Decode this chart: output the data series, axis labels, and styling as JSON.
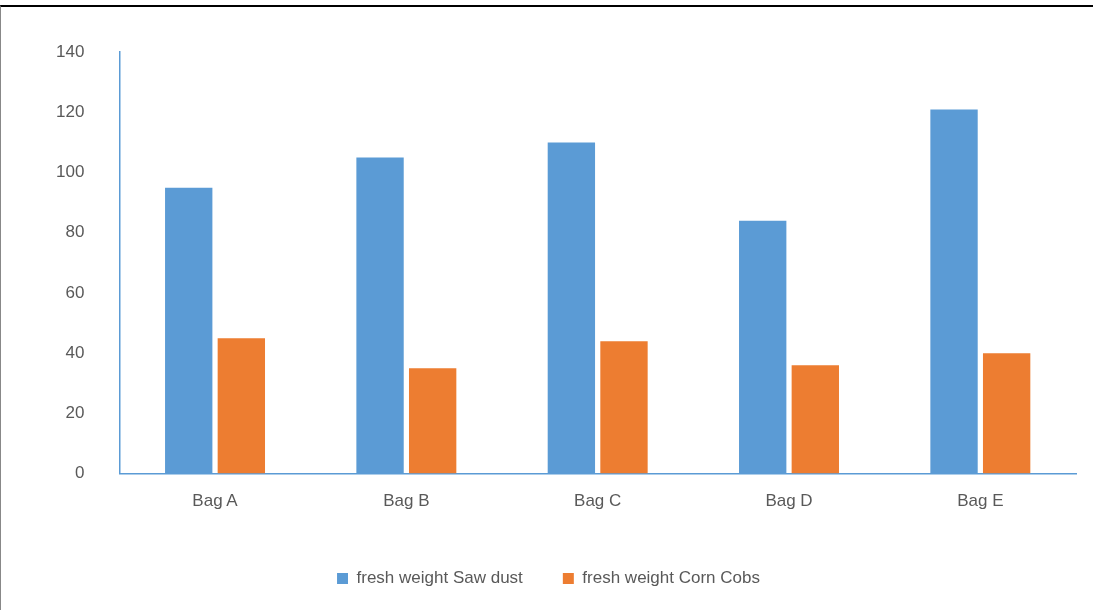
{
  "chart_data": {
    "type": "bar",
    "categories": [
      "Bag A",
      "Bag B",
      "Bag C",
      "Bag D",
      "Bag E"
    ],
    "series": [
      {
        "name": "fresh weight Saw dust",
        "color": "#5b9bd5",
        "values": [
          95,
          105,
          110,
          84,
          121
        ]
      },
      {
        "name": "fresh weight Corn Cobs",
        "color": "#ed7d31",
        "values": [
          45,
          35,
          44,
          36,
          40
        ]
      }
    ],
    "ylim": [
      0,
      140
    ],
    "yticks": [
      0,
      20,
      40,
      60,
      80,
      100,
      120,
      140
    ],
    "grid": false,
    "legend": "bottom"
  }
}
